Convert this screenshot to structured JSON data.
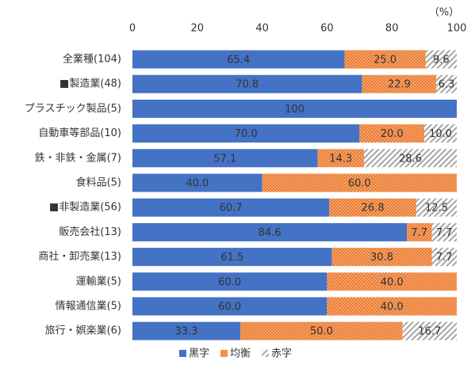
{
  "chart_data": {
    "type": "stacked_bar_horizontal",
    "unit_label": "（%）",
    "categories": [
      "全業種(104)",
      "■製造業(48)",
      "プラスチック製品(5)",
      "自動車等部品(10)",
      "鉄・非鉄・金属(7)",
      "食料品(5)",
      "■非製造業(56)",
      "販売会社(13)",
      "商社・卸売業(13)",
      "運輸業(5)",
      "情報通信業(5)",
      "旅行・娯楽業(6)"
    ],
    "series": [
      {
        "name": "黒字",
        "color": "#4472c4",
        "pattern": "solid",
        "values": [
          65.4,
          70.8,
          100,
          70.0,
          57.1,
          40.0,
          60.7,
          84.6,
          61.5,
          60.0,
          60.0,
          33.3
        ],
        "value_labels": [
          "65.4",
          "70.8",
          "100",
          "70.0",
          "57.1",
          "40.0",
          "60.7",
          "84.6",
          "61.5",
          "60.0",
          "60.0",
          "33.3"
        ]
      },
      {
        "name": "均衡",
        "color": "#ed7d31",
        "pattern": "dots",
        "values": [
          25.0,
          22.9,
          null,
          20.0,
          14.3,
          60.0,
          26.8,
          7.7,
          30.8,
          40.0,
          40.0,
          50.0
        ],
        "value_labels": [
          "25.0",
          "22.9",
          null,
          "20.0",
          "14.3",
          "60.0",
          "26.8",
          "7.7",
          "30.8",
          "40.0",
          "40.0",
          "50.0"
        ]
      },
      {
        "name": "赤字",
        "color": "#a5a5a5",
        "pattern": "hatch",
        "values": [
          9.6,
          6.3,
          null,
          10.0,
          28.6,
          null,
          12.5,
          7.7,
          7.7,
          null,
          null,
          16.7
        ],
        "value_labels": [
          "9.6",
          "6.3",
          null,
          "10.0",
          "28.6",
          null,
          "12.5",
          "7.7",
          "7.7",
          null,
          null,
          "16.7"
        ]
      }
    ],
    "xlim": [
      0,
      100
    ],
    "xticks": [
      0,
      20,
      40,
      60,
      80,
      100
    ],
    "legend": "bottom"
  }
}
